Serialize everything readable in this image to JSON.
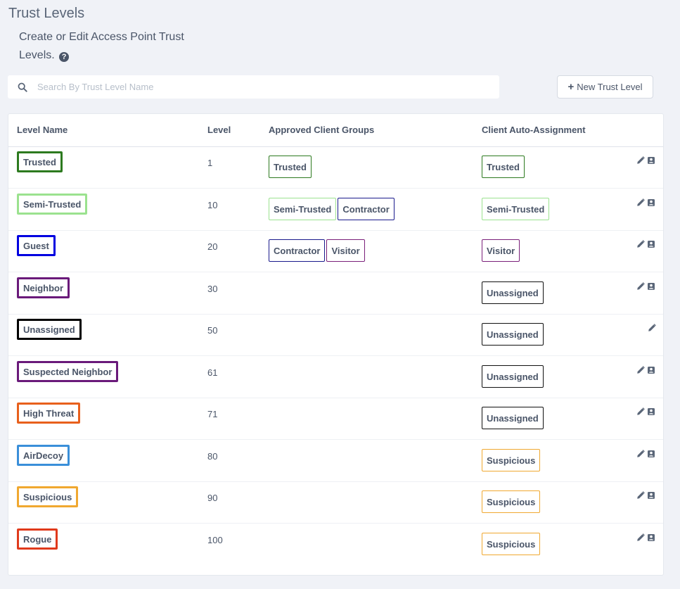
{
  "header": {
    "title": "Trust Levels",
    "subtitle": "Create or Edit Access Point Trust Levels.",
    "help_icon": "question-circle-icon"
  },
  "search": {
    "placeholder": "Search By Trust Level Name",
    "value": ""
  },
  "new_button": {
    "label": "New Trust Level",
    "icon": "plus-icon"
  },
  "table": {
    "columns": [
      "Level Name",
      "Level",
      "Approved Client Groups",
      "Client Auto-Assignment"
    ],
    "rows": [
      {
        "name": "Trusted",
        "color": "#2d7a1f",
        "level": "1",
        "groups": [
          {
            "label": "Trusted",
            "color": "#2d7a1f"
          }
        ],
        "auto": {
          "label": "Trusted",
          "color": "#2d7a1f"
        },
        "has_delete": true
      },
      {
        "name": "Semi-Trusted",
        "color": "#9be28f",
        "level": "10",
        "groups": [
          {
            "label": "Semi-Trusted",
            "color": "#9be28f"
          },
          {
            "label": "Contractor",
            "color": "#1a1a8c"
          }
        ],
        "auto": {
          "label": "Semi-Trusted",
          "color": "#9be28f"
        },
        "has_delete": true
      },
      {
        "name": "Guest",
        "color": "#0000e0",
        "level": "20",
        "groups": [
          {
            "label": "Contractor",
            "color": "#1a1a8c"
          },
          {
            "label": "Visitor",
            "color": "#7a1f7a"
          }
        ],
        "auto": {
          "label": "Visitor",
          "color": "#7a1f7a"
        },
        "has_delete": true
      },
      {
        "name": "Neighbor",
        "color": "#6a1a7a",
        "level": "30",
        "groups": [],
        "auto": {
          "label": "Unassigned",
          "color": "#111111"
        },
        "has_delete": true
      },
      {
        "name": "Unassigned",
        "color": "#000000",
        "level": "50",
        "groups": [],
        "auto": {
          "label": "Unassigned",
          "color": "#111111"
        },
        "has_delete": false
      },
      {
        "name": "Suspected Neighbor",
        "color": "#6a1a7a",
        "level": "61",
        "groups": [],
        "auto": {
          "label": "Unassigned",
          "color": "#111111"
        },
        "has_delete": true
      },
      {
        "name": "High Threat",
        "color": "#e8601c",
        "level": "71",
        "groups": [],
        "auto": {
          "label": "Unassigned",
          "color": "#111111"
        },
        "has_delete": true
      },
      {
        "name": "AirDecoy",
        "color": "#3a8fd9",
        "level": "80",
        "groups": [],
        "auto": {
          "label": "Suspicious",
          "color": "#f0a830"
        },
        "has_delete": true
      },
      {
        "name": "Suspicious",
        "color": "#f0a830",
        "level": "90",
        "groups": [],
        "auto": {
          "label": "Suspicious",
          "color": "#f0a830"
        },
        "has_delete": true
      },
      {
        "name": "Rogue",
        "color": "#e03a1c",
        "level": "100",
        "groups": [],
        "auto": {
          "label": "Suspicious",
          "color": "#f0a830"
        },
        "has_delete": true
      }
    ]
  },
  "icons": {
    "edit": "pencil-icon",
    "delete": "delete-icon"
  }
}
